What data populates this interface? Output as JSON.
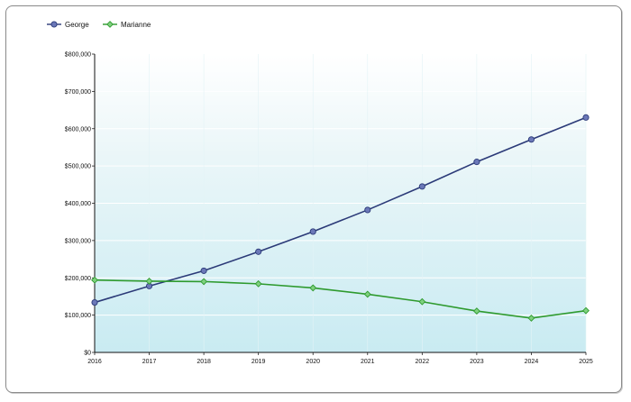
{
  "chart_data": {
    "type": "line",
    "title": "",
    "xlabel": "",
    "ylabel": "",
    "x": [
      "2016",
      "2017",
      "2018",
      "2019",
      "2020",
      "2021",
      "2022",
      "2023",
      "2024",
      "2025"
    ],
    "ylim": [
      0,
      800000
    ],
    "yticks": [
      0,
      100000,
      200000,
      300000,
      400000,
      500000,
      600000,
      700000,
      800000
    ],
    "ytick_labels": [
      "$0",
      "$100,000",
      "$200,000",
      "$300,000",
      "$400,000",
      "$500,000",
      "$600,000",
      "$700,000",
      "$800,000"
    ],
    "grid": true,
    "legend_position": "top-left",
    "series": [
      {
        "name": "George",
        "color": "#2b3a78",
        "marker": "circle",
        "values": [
          134000,
          178000,
          219000,
          270000,
          324000,
          382000,
          445000,
          511000,
          571000,
          630000
        ]
      },
      {
        "name": "Marianne",
        "color": "#2e9a2e",
        "marker": "diamond",
        "values": [
          194000,
          191000,
          190000,
          184000,
          173000,
          156000,
          136000,
          111000,
          92000,
          112000
        ]
      }
    ]
  }
}
